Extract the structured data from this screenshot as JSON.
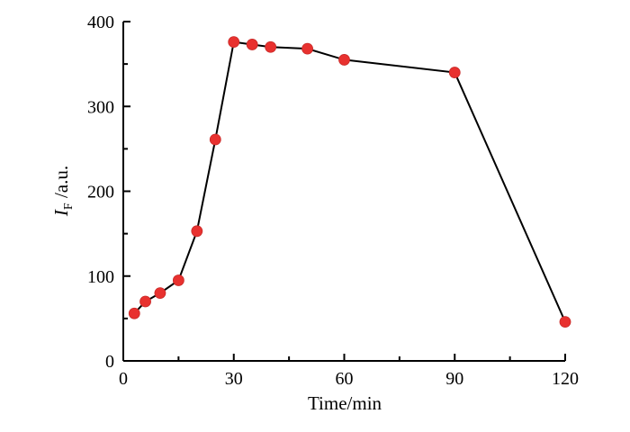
{
  "chart_data": {
    "type": "line",
    "xlabel": "Time/min",
    "ylabel": {
      "symbol": "I",
      "subscript": "F",
      "unit": " /a.u."
    },
    "xlim": [
      0,
      120
    ],
    "ylim": [
      0,
      400
    ],
    "x_ticks": [
      0,
      30,
      60,
      90,
      120
    ],
    "y_ticks": [
      0,
      100,
      200,
      300,
      400
    ],
    "grid": false,
    "marker_color": "#e8312f",
    "line_color": "#000000",
    "series": [
      {
        "x": [
          3,
          6,
          10,
          15,
          20,
          25,
          30,
          35,
          40,
          50,
          60,
          90,
          120
        ],
        "y": [
          56,
          70,
          80,
          95,
          153,
          261,
          376,
          373,
          370,
          368,
          355,
          340,
          46
        ]
      }
    ]
  }
}
